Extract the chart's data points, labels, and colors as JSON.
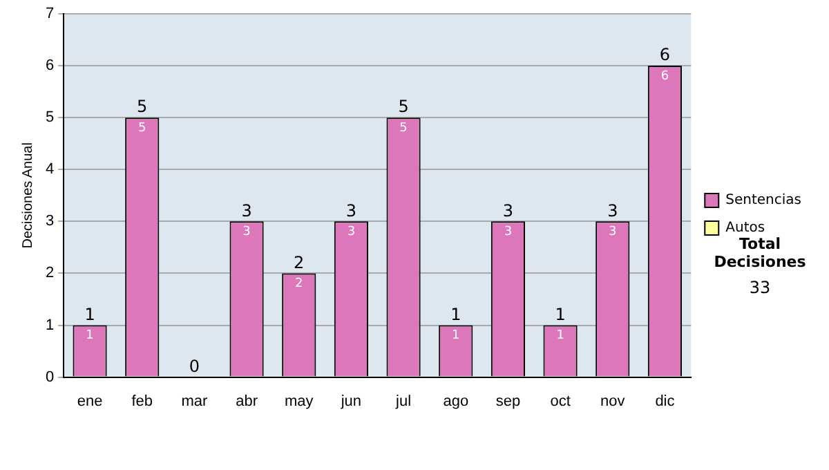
{
  "chart_data": {
    "type": "bar",
    "ylabel": "Decisiones Anual",
    "categories": [
      "ene",
      "feb",
      "mar",
      "abr",
      "may",
      "jun",
      "jul",
      "ago",
      "sep",
      "oct",
      "nov",
      "dic"
    ],
    "stacked": true,
    "ylim": [
      0,
      7
    ],
    "yticks": [
      0,
      1,
      2,
      3,
      4,
      5,
      6,
      7
    ],
    "grid": "y",
    "legend": "right",
    "series": [
      {
        "name": "Sentencias",
        "color": "#dd77bb",
        "values": [
          1,
          5,
          0,
          3,
          2,
          3,
          5,
          1,
          3,
          1,
          3,
          6
        ],
        "value_labels": [
          "1",
          "5",
          null,
          "3",
          "2",
          "3",
          "5",
          "1",
          "3",
          "1",
          "3",
          "6"
        ]
      },
      {
        "name": "Autos",
        "color": "#ffff99",
        "values": [
          0,
          0,
          0,
          0,
          0,
          0,
          0,
          0,
          0,
          0,
          0,
          0
        ]
      }
    ],
    "totals": [
      "1",
      "5",
      "0",
      "3",
      "2",
      "3",
      "5",
      "1",
      "3",
      "1",
      "3",
      "6"
    ],
    "annotations": [
      "Total Decisiones",
      "33"
    ]
  }
}
